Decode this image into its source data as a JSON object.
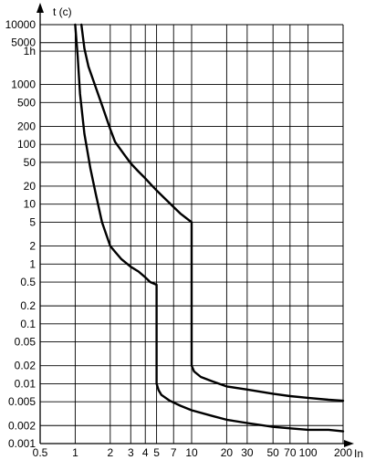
{
  "chart_data": {
    "type": "line",
    "xlabel": "In",
    "ylabel": "t (c)",
    "x_scale": "log",
    "y_scale": "log",
    "xlim": [
      0.5,
      200
    ],
    "ylim": [
      0.001,
      10000
    ],
    "grid": true,
    "x_ticks": [
      {
        "value": 0.5,
        "label": "0.5"
      },
      {
        "value": 1,
        "label": "1"
      },
      {
        "value": 2,
        "label": "2"
      },
      {
        "value": 3,
        "label": "3"
      },
      {
        "value": 4,
        "label": "4"
      },
      {
        "value": 5,
        "label": "5"
      },
      {
        "value": 7,
        "label": "7"
      },
      {
        "value": 10,
        "label": "10"
      },
      {
        "value": 20,
        "label": "20"
      },
      {
        "value": 30,
        "label": "30"
      },
      {
        "value": 50,
        "label": "50"
      },
      {
        "value": 70,
        "label": "70"
      },
      {
        "value": 100,
        "label": "100"
      },
      {
        "value": 200,
        "label": "200"
      }
    ],
    "y_ticks": [
      {
        "value": 10000,
        "label": "10000"
      },
      {
        "value": 5000,
        "label": "5000"
      },
      {
        "value": 3600,
        "label": "1h"
      },
      {
        "value": 1000,
        "label": "1000"
      },
      {
        "value": 500,
        "label": "500"
      },
      {
        "value": 200,
        "label": "200"
      },
      {
        "value": 100,
        "label": "100"
      },
      {
        "value": 50,
        "label": "50"
      },
      {
        "value": 20,
        "label": "20"
      },
      {
        "value": 10,
        "label": "10"
      },
      {
        "value": 5,
        "label": "5"
      },
      {
        "value": 2,
        "label": "2"
      },
      {
        "value": 1,
        "label": "1"
      },
      {
        "value": 0.5,
        "label": "0.5"
      },
      {
        "value": 0.2,
        "label": "0.2"
      },
      {
        "value": 0.1,
        "label": "0.1"
      },
      {
        "value": 0.05,
        "label": "0.05"
      },
      {
        "value": 0.02,
        "label": "0.02"
      },
      {
        "value": 0.01,
        "label": "0.01"
      },
      {
        "value": 0.005,
        "label": "0.005"
      },
      {
        "value": 0.002,
        "label": "0.002"
      },
      {
        "value": 0.001,
        "label": "0.001"
      }
    ],
    "series": [
      {
        "x": [
          1.13,
          1.2,
          1.3,
          1.5,
          1.7,
          2.0,
          2.2,
          2.6,
          3.0,
          3.5,
          4.0,
          4.5,
          5.0,
          6.0,
          7.0,
          8.0,
          10.0,
          10.0,
          10.5,
          12,
          15,
          20,
          30,
          50,
          70,
          100,
          150,
          200
        ],
        "y": [
          10000,
          4000,
          2000,
          900,
          450,
          180,
          110,
          70,
          48,
          35,
          27,
          21,
          17,
          12,
          9,
          7,
          5,
          0.02,
          0.016,
          0.013,
          0.011,
          0.009,
          0.008,
          0.0068,
          0.0062,
          0.0058,
          0.0054,
          0.0052
        ]
      },
      {
        "x": [
          1.0,
          1.05,
          1.1,
          1.2,
          1.35,
          1.5,
          1.7,
          2.0,
          2.2,
          2.5,
          3.0,
          3.5,
          4.0,
          4.4,
          5.0,
          5.0,
          5.2,
          5.5,
          6.5,
          8.0,
          10,
          15,
          20,
          30,
          50,
          70,
          100,
          150,
          200
        ],
        "y": [
          10000,
          3000,
          700,
          150,
          40,
          15,
          5,
          2.0,
          1.6,
          1.2,
          0.9,
          0.75,
          0.6,
          0.5,
          0.45,
          0.01,
          0.0078,
          0.0065,
          0.0052,
          0.0043,
          0.0036,
          0.0029,
          0.0025,
          0.0022,
          0.0019,
          0.0018,
          0.0017,
          0.0017,
          0.0016
        ]
      }
    ]
  }
}
